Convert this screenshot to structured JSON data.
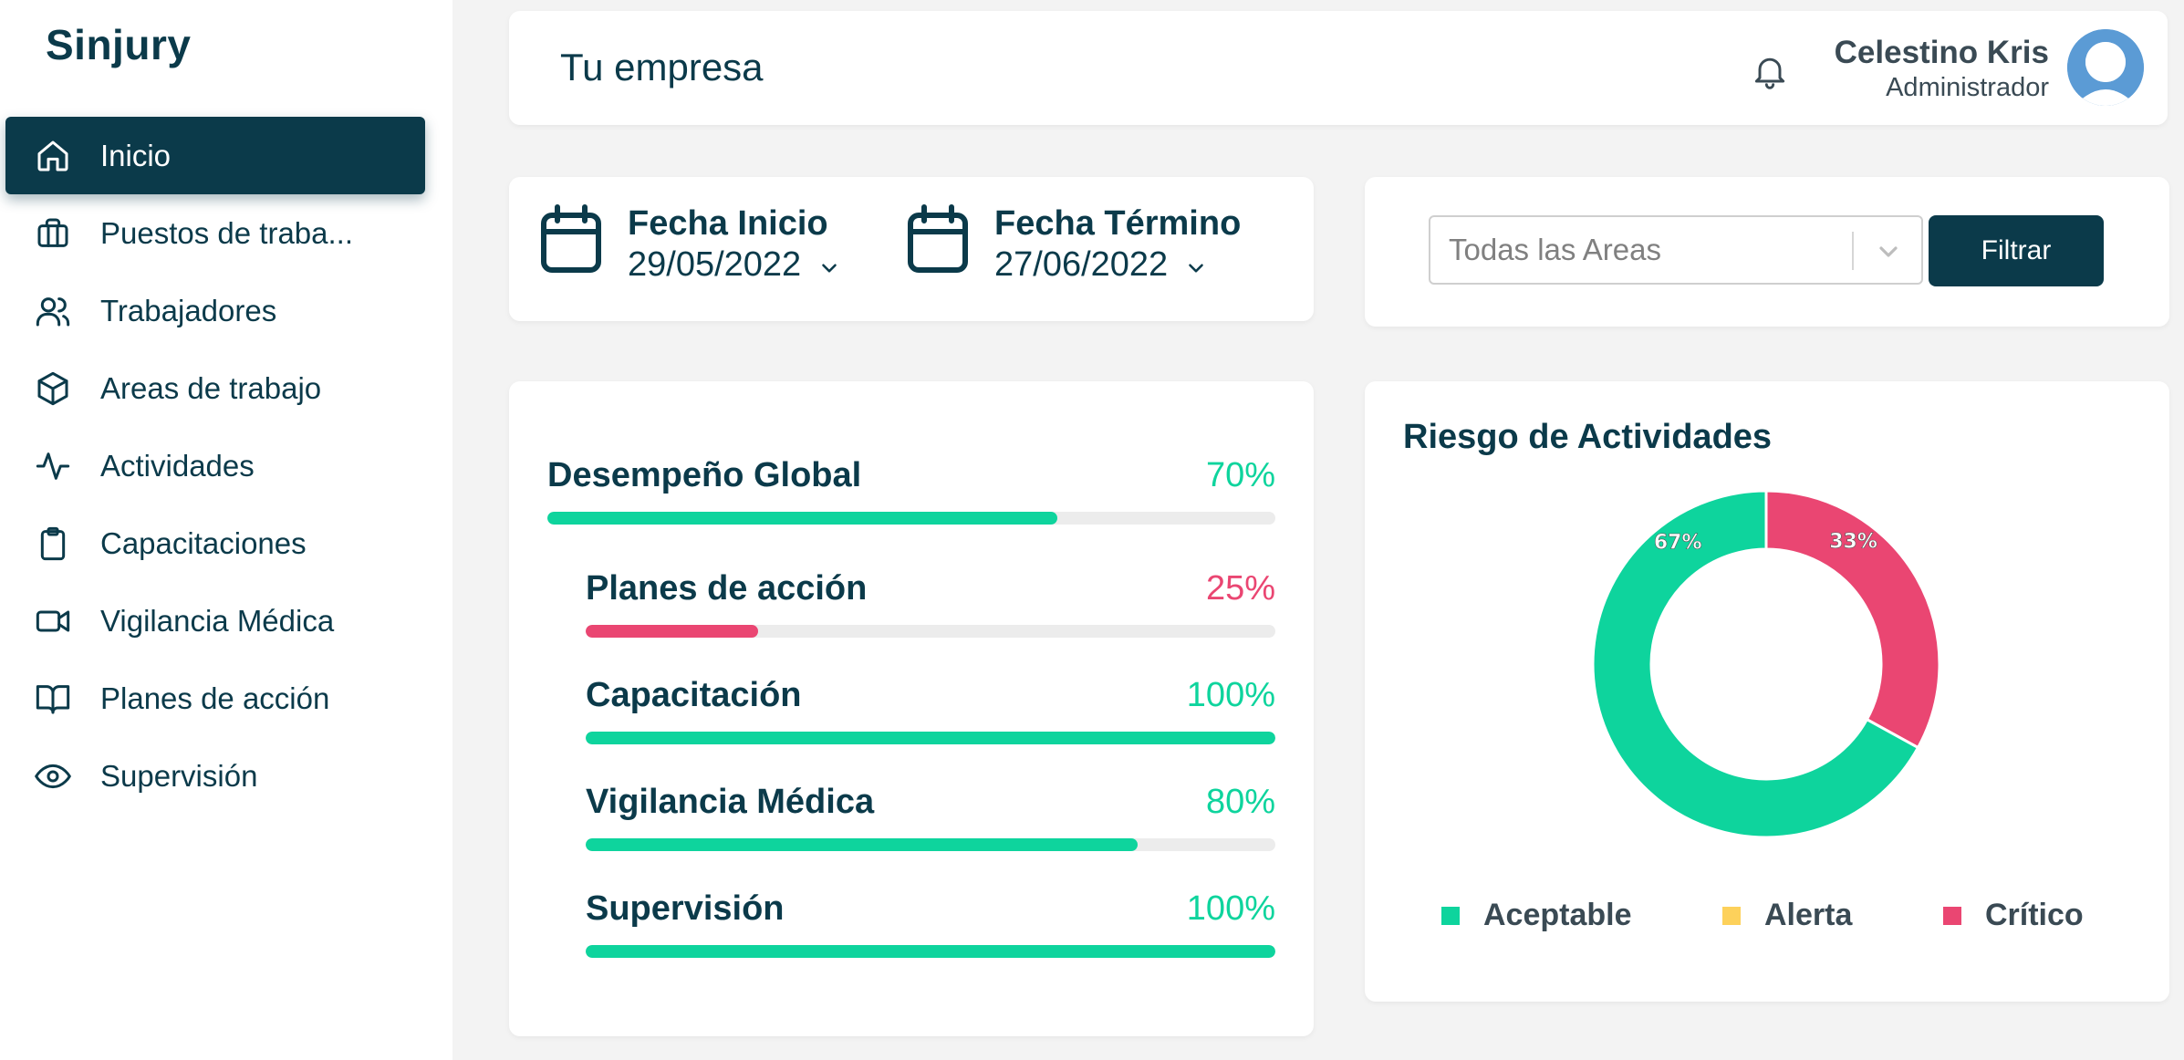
{
  "app": {
    "brand": "Sinjury"
  },
  "sidebar": {
    "items": [
      {
        "label": "Inicio",
        "icon": "home-icon",
        "active": true
      },
      {
        "label": "Puestos de traba...",
        "icon": "briefcase-icon"
      },
      {
        "label": "Trabajadores",
        "icon": "users-icon"
      },
      {
        "label": "Areas de trabajo",
        "icon": "cube-icon"
      },
      {
        "label": "Actividades",
        "icon": "activity-icon"
      },
      {
        "label": "Capacitaciones",
        "icon": "clipboard-icon"
      },
      {
        "label": "Vigilancia Médica",
        "icon": "video-icon"
      },
      {
        "label": "Planes de acción",
        "icon": "book-open-icon"
      },
      {
        "label": "Supervisión",
        "icon": "eye-icon"
      }
    ]
  },
  "header": {
    "title": "Tu empresa",
    "user_name": "Celestino Kris",
    "user_role": "Administrador"
  },
  "dates": {
    "start_label": "Fecha Inicio",
    "start_value": "29/05/2022",
    "end_label": "Fecha Término",
    "end_value": "27/06/2022"
  },
  "filter": {
    "select_value": "Todas las Areas",
    "button_label": "Filtrar"
  },
  "progress": [
    {
      "label": "Desempeño Global",
      "value_text": "70%",
      "value": 70,
      "color": "#0ed49d"
    },
    {
      "label": "Planes de acción",
      "value_text": "25%",
      "value": 25,
      "color": "#ea4672"
    },
    {
      "label": "Capacitación",
      "value_text": "100%",
      "value": 100,
      "color": "#0ed49d"
    },
    {
      "label": "Vigilancia Médica",
      "value_text": "80%",
      "value": 80,
      "color": "#0ed49d"
    },
    {
      "label": "Supervisión",
      "value_text": "100%",
      "value": 100,
      "color": "#0ed49d"
    }
  ],
  "colors": {
    "primary": "#0b3a4a",
    "green": "#0ed49d",
    "pink": "#ea4672",
    "yellow": "#fdd15b"
  },
  "chart_data": {
    "type": "pie",
    "title": "Riesgo de Actividades",
    "categories": [
      "Aceptable",
      "Alerta",
      "Crítico"
    ],
    "values": [
      67,
      0,
      33
    ],
    "labels": [
      "67%",
      "",
      "33%"
    ],
    "colors": [
      "#0ed49d",
      "#fdd15b",
      "#ea4672"
    ],
    "legend": "bottom"
  }
}
